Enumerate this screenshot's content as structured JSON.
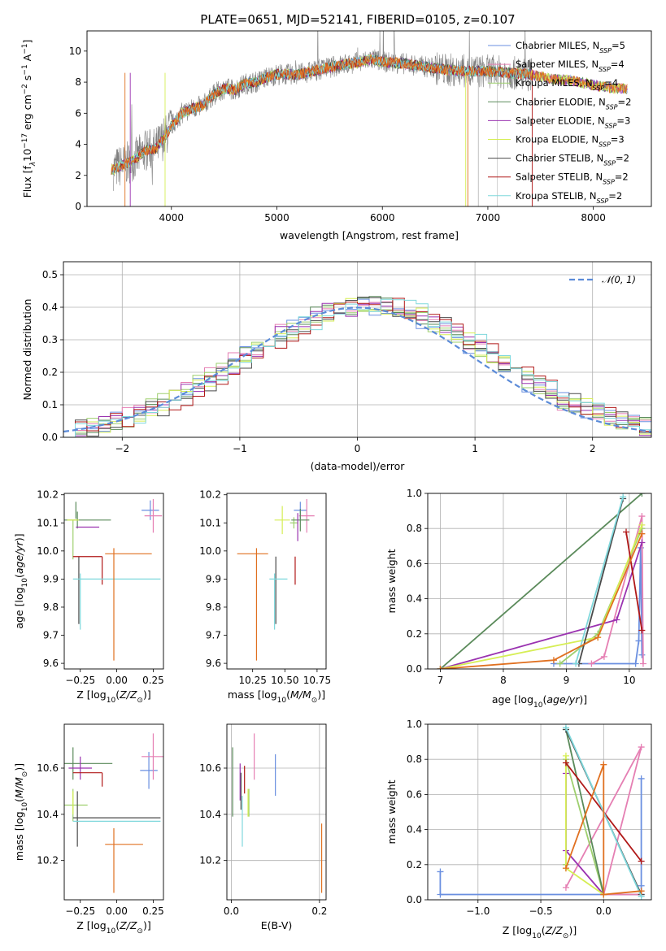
{
  "title": "PLATE=0651, MJD=52141, FIBERID=0105, z=0.107",
  "colors": {
    "Chabrier MILES": "#6a8fe0",
    "Salpeter MILES": "#e57fb3",
    "Kroupa MILES": "#9ecf6e",
    "Chabrier ELODIE": "#5a8a5a",
    "Salpeter ELODIE": "#9a32b0",
    "Kroupa ELODIE": "#d6ee55",
    "Chabrier STELIB": "#4a4a4a",
    "Salpeter STELIB": "#b01818",
    "Kroupa STELIB": "#7fd8dc",
    "data": "#808080",
    "normal": "#5b8bd8",
    "orange": "#e07020"
  },
  "chart_data": [
    {
      "id": "spectrum",
      "type": "line",
      "title": "PLATE=0651, MJD=52141, FIBERID=0105, z=0.107",
      "xlabel": "wavelength [Angstrom, rest frame]",
      "ylabel": "Flux [f$_\\lambda$10$^{-17}$ erg cm$^{-2}$ s$^{-1}$ A$^{-1}$]",
      "ylabel_parts": [
        "Flux [f",
        "λ",
        "10",
        "−17",
        " erg cm",
        "−2",
        " s",
        "−1",
        " A",
        "−1",
        "]"
      ],
      "xlim": [
        3200,
        8550
      ],
      "ylim": [
        0,
        11.3
      ],
      "xticks": [
        4000,
        5000,
        6000,
        7000,
        8000
      ],
      "yticks": [
        0,
        2,
        4,
        6,
        8,
        10
      ],
      "continuum": {
        "x": [
          3450,
          3550,
          3650,
          3750,
          3850,
          3950,
          4000,
          4100,
          4200,
          4300,
          4400,
          4500,
          4600,
          4700,
          4800,
          4900,
          5000,
          5200,
          5400,
          5600,
          5800,
          5900,
          6000,
          6200,
          6400,
          6600,
          6800,
          7000,
          7200,
          7400,
          7600,
          7800,
          8000,
          8200,
          8300
        ],
        "y": [
          2.4,
          2.7,
          3.0,
          3.6,
          3.7,
          4.6,
          5.2,
          6.0,
          6.3,
          6.5,
          7.2,
          7.6,
          7.5,
          7.9,
          8.0,
          8.3,
          8.5,
          8.5,
          8.8,
          9.1,
          9.3,
          9.5,
          9.3,
          9.2,
          9.0,
          8.8,
          8.7,
          8.7,
          8.6,
          8.5,
          8.2,
          8.1,
          7.8,
          7.6,
          7.6
        ]
      },
      "legend": [
        {
          "name": "Chabrier MILES",
          "nssp": "5"
        },
        {
          "name": "Salpeter MILES",
          "nssp": "4"
        },
        {
          "name": "Kroupa MILES",
          "nssp": "4"
        },
        {
          "name": "Chabrier ELODIE",
          "nssp": "2"
        },
        {
          "name": "Salpeter ELODIE",
          "nssp": "3"
        },
        {
          "name": "Kroupa ELODIE",
          "nssp": "3"
        },
        {
          "name": "Chabrier STELIB",
          "nssp": "2"
        },
        {
          "name": "Salpeter STELIB",
          "nssp": "2"
        },
        {
          "name": "Kroupa STELIB",
          "nssp": "2"
        }
      ],
      "legend_placement": "right"
    },
    {
      "id": "residuals",
      "type": "histogram",
      "xlabel": "(data-model)/error",
      "ylabel": "Normed distribution",
      "xlim": [
        -2.5,
        2.5
      ],
      "ylim": [
        0,
        0.54
      ],
      "xticks": [
        -2,
        -1,
        0,
        1,
        2
      ],
      "yticks": [
        0.0,
        0.1,
        0.2,
        0.3,
        0.4,
        0.5
      ],
      "bin_width": 0.1,
      "legend": "$\\mathcal{N}(0,1)$",
      "legend_label": "𝒩(0, 1)",
      "legend_placement": "top-right",
      "grid": true
    },
    {
      "id": "age-vs-Z",
      "type": "errorbar",
      "xlabel": "Z [log$_{10}$($Z/Z_\\odot$)]",
      "ylabel": "age  [log$_{10}$($age/yr$)]",
      "xlim": [
        -0.36,
        0.32
      ],
      "ylim": [
        9.58,
        10.205
      ],
      "xticks": [
        -0.25,
        0.0,
        0.25
      ],
      "xticklabels": [
        "−0.25",
        "0.00",
        "0.25"
      ],
      "yticks": [
        9.6,
        9.7,
        9.8,
        9.9,
        10.0,
        10.1,
        10.2
      ],
      "points": [
        {
          "series": "Chabrier MILES",
          "x": 0.23,
          "xerr": 0.06,
          "y": 10.145,
          "yerr": 0.035
        },
        {
          "series": "Salpeter MILES",
          "x": 0.25,
          "xerr": 0.06,
          "y": 10.125,
          "yerr": 0.06
        },
        {
          "series": "Kroupa MILES",
          "x": -0.3,
          "xerr": 0.0,
          "y": 10.04,
          "yerr": 0.07
        },
        {
          "series": "Chabrier ELODIE",
          "x": -0.28,
          "xerr": 0.0,
          "y": 10.145,
          "yerr": 0.03
        },
        {
          "series": "Chabrier ELODIE",
          "x": -0.27,
          "xerr": 0.23,
          "y": 10.11,
          "yerr": 0.03
        },
        {
          "series": "Salpeter ELODIE",
          "x": -0.2,
          "xerr": 0.08,
          "y": 10.085,
          "yerr": 0.0
        },
        {
          "series": "Kroupa ELODIE",
          "x": -0.3,
          "xerr": 0.04,
          "y": 10.11,
          "yerr": 0.0
        },
        {
          "series": "Chabrier STELIB",
          "x": -0.26,
          "xerr": 0.0,
          "y": 9.86,
          "yerr": 0.12
        },
        {
          "series": "Salpeter STELIB",
          "x": -0.1,
          "xerr": 0.0,
          "y": 9.93,
          "yerr": 0.05
        },
        {
          "series": "Salpeter STELIB",
          "x": -0.2,
          "xerr": 0.1,
          "y": 9.98,
          "yerr": 0.0
        },
        {
          "series": "Kroupa STELIB",
          "x": 0.0,
          "xerr": 0.3,
          "y": 9.9,
          "yerr": 0.0
        },
        {
          "series": "Kroupa STELIB",
          "x": -0.25,
          "xerr": 0.0,
          "y": 9.82,
          "yerr": 0.1
        },
        {
          "series": "orange",
          "x": -0.02,
          "xerr": 0.0,
          "y": 9.81,
          "yerr": 0.2
        },
        {
          "series": "orange",
          "x": 0.08,
          "xerr": 0.16,
          "y": 9.99,
          "yerr": 0.0
        }
      ]
    },
    {
      "id": "age-vs-mass",
      "type": "errorbar",
      "xlabel": "mass [log$_{10}$($M/M_\\odot$)]",
      "xlim": [
        10.05,
        10.82
      ],
      "ylim": [
        9.58,
        10.205
      ],
      "xticks": [
        10.25,
        10.5,
        10.75
      ],
      "xticklabels": [
        "10.25",
        "10.50",
        "10.75"
      ],
      "yticks": [
        9.6,
        9.7,
        9.8,
        9.9,
        10.0,
        10.1,
        10.2
      ],
      "points": [
        {
          "series": "Chabrier MILES",
          "x": 10.62,
          "xerr": 0.05,
          "y": 10.145,
          "yerr": 0.03
        },
        {
          "series": "Salpeter MILES",
          "x": 10.67,
          "xerr": 0.06,
          "y": 10.125,
          "yerr": 0.06
        },
        {
          "series": "Kroupa MILES",
          "x": 10.57,
          "xerr": 0.03,
          "y": 10.1,
          "yerr": 0.02
        },
        {
          "series": "Chabrier ELODIE",
          "x": 10.62,
          "xerr": 0.07,
          "y": 10.11,
          "yerr": 0.04
        },
        {
          "series": "Salpeter ELODIE",
          "x": 10.6,
          "xerr": 0.0,
          "y": 10.085,
          "yerr": 0.05
        },
        {
          "series": "Kroupa ELODIE",
          "x": 10.48,
          "xerr": 0.06,
          "y": 10.11,
          "yerr": 0.05
        },
        {
          "series": "Chabrier STELIB",
          "x": 10.43,
          "xerr": 0.0,
          "y": 9.86,
          "yerr": 0.12
        },
        {
          "series": "Salpeter STELIB",
          "x": 10.58,
          "xerr": 0.0,
          "y": 9.93,
          "yerr": 0.05
        },
        {
          "series": "Kroupa STELIB",
          "x": 10.45,
          "xerr": 0.07,
          "y": 9.9,
          "yerr": 0.0
        },
        {
          "series": "Kroupa STELIB",
          "x": 10.42,
          "xerr": 0.0,
          "y": 9.82,
          "yerr": 0.1
        },
        {
          "series": "orange",
          "x": 10.28,
          "xerr": 0.0,
          "y": 9.81,
          "yerr": 0.2
        },
        {
          "series": "orange",
          "x": 10.25,
          "xerr": 0.12,
          "y": 9.99,
          "yerr": 0.0
        }
      ]
    },
    {
      "id": "weight-vs-age",
      "type": "line",
      "xlabel": "age  [log$_{10}$($age/yr$)]",
      "ylabel": "mass weight",
      "xlim": [
        6.8,
        10.35
      ],
      "ylim": [
        0,
        1
      ],
      "xticks": [
        7,
        8,
        9,
        10
      ],
      "yticks": [
        0.0,
        0.2,
        0.4,
        0.6,
        0.8,
        1.0
      ],
      "grid": true,
      "series": [
        {
          "name": "Chabrier MILES",
          "x": [
            8.8,
            10.1,
            10.15,
            10.18,
            10.2
          ],
          "y": [
            0.03,
            0.03,
            0.16,
            0.69,
            0.08
          ]
        },
        {
          "name": "Salpeter MILES",
          "x": [
            9.4,
            9.6,
            10.2,
            10.22
          ],
          "y": [
            0.03,
            0.07,
            0.87,
            0.03
          ]
        },
        {
          "name": "Kroupa MILES",
          "x": [
            8.9,
            9.5,
            10.2
          ],
          "y": [
            0.03,
            0.2,
            0.8
          ]
        },
        {
          "name": "Chabrier ELODIE",
          "x": [
            7.0,
            10.2
          ],
          "y": [
            0.0,
            1.0
          ]
        },
        {
          "name": "Salpeter ELODIE",
          "x": [
            7.0,
            9.8,
            10.2
          ],
          "y": [
            0.0,
            0.28,
            0.72
          ]
        },
        {
          "name": "Kroupa ELODIE",
          "x": [
            7.0,
            9.5,
            10.2
          ],
          "y": [
            0.0,
            0.18,
            0.82
          ]
        },
        {
          "name": "Chabrier STELIB",
          "x": [
            9.2,
            9.9
          ],
          "y": [
            0.03,
            0.97
          ]
        },
        {
          "name": "Salpeter STELIB",
          "x": [
            9.95,
            10.2
          ],
          "y": [
            0.78,
            0.22
          ]
        },
        {
          "name": "Kroupa STELIB",
          "x": [
            9.15,
            9.9
          ],
          "y": [
            0.03,
            0.98
          ]
        },
        {
          "name": "orange",
          "x": [
            7.0,
            8.8,
            9.5,
            10.2
          ],
          "y": [
            0.0,
            0.05,
            0.18,
            0.77
          ]
        }
      ]
    },
    {
      "id": "mass-vs-Z",
      "type": "errorbar",
      "xlabel": "Z [log$_{10}$($Z/Z_\\odot$)]",
      "ylabel": "mass [log$_{10}$($M/M_\\odot$)]",
      "xlim": [
        -0.36,
        0.32
      ],
      "ylim": [
        10.03,
        10.79
      ],
      "xticks": [
        -0.25,
        0.0,
        0.25
      ],
      "xticklabels": [
        "−0.25",
        "0.00",
        "0.25"
      ],
      "yticks": [
        10.2,
        10.4,
        10.6
      ],
      "points": [
        {
          "series": "Chabrier MILES",
          "x": 0.22,
          "xerr": 0.06,
          "y": 10.59,
          "yerr": 0.08
        },
        {
          "series": "Salpeter MILES",
          "x": 0.25,
          "xerr": 0.08,
          "y": 10.65,
          "yerr": 0.1
        },
        {
          "series": "Kroupa MILES",
          "x": -0.3,
          "xerr": 0.1,
          "y": 10.44,
          "yerr": 0.07
        },
        {
          "series": "Chabrier ELODIE",
          "x": -0.3,
          "xerr": 0.27,
          "y": 10.62,
          "yerr": 0.07
        },
        {
          "series": "Salpeter ELODIE",
          "x": -0.25,
          "xerr": 0.08,
          "y": 10.6,
          "yerr": 0.05
        },
        {
          "series": "Kroupa ELODIE",
          "x": -0.3,
          "xerr": 0.0,
          "y": 10.45,
          "yerr": 0.05
        },
        {
          "series": "Chabrier STELIB",
          "x": -0.27,
          "xerr": 0.0,
          "y": 10.38,
          "yerr": 0.12
        },
        {
          "series": "Salpeter STELIB",
          "x": -0.1,
          "xerr": 0.0,
          "y": 10.55,
          "yerr": 0.03
        },
        {
          "series": "Salpeter STELIB",
          "x": -0.2,
          "xerr": 0.1,
          "y": 10.58,
          "yerr": 0.0
        },
        {
          "series": "Kroupa STELIB",
          "x": 0.0,
          "xerr": 0.3,
          "y": 10.37,
          "yerr": 0.0
        },
        {
          "series": "Chabrier STELIB",
          "x": 0.0,
          "xerr": 0.3,
          "y": 10.385,
          "yerr": 0.0
        },
        {
          "series": "orange",
          "x": -0.02,
          "xerr": 0.0,
          "y": 10.2,
          "yerr": 0.14
        },
        {
          "series": "orange",
          "x": 0.05,
          "xerr": 0.13,
          "y": 10.27,
          "yerr": 0.0
        }
      ]
    },
    {
      "id": "mass-vs-EBV",
      "type": "errorbar",
      "xlabel": "E(B-V)",
      "xlim": [
        -0.01,
        0.215
      ],
      "ylim": [
        10.03,
        10.79
      ],
      "xticks": [
        0.0,
        0.2
      ],
      "xticklabels": [
        "0.0",
        "0.2"
      ],
      "yticks": [
        10.2,
        10.4,
        10.6
      ],
      "grid": true,
      "points": [
        {
          "series": "Chabrier MILES",
          "x": 0.1,
          "xerr": 0.0,
          "y": 10.57,
          "yerr": 0.09
        },
        {
          "series": "Salpeter MILES",
          "x": 0.052,
          "xerr": 0.0,
          "y": 10.65,
          "yerr": 0.1
        },
        {
          "series": "Kroupa MILES",
          "x": 0.04,
          "xerr": 0.0,
          "y": 10.45,
          "yerr": 0.06
        },
        {
          "series": "Chabrier ELODIE",
          "x": 0.003,
          "xerr": 0.0,
          "y": 10.54,
          "yerr": 0.15
        },
        {
          "series": "Salpeter ELODIE",
          "x": 0.02,
          "xerr": 0.0,
          "y": 10.54,
          "yerr": 0.08
        },
        {
          "series": "Kroupa ELODIE",
          "x": 0.038,
          "xerr": 0.0,
          "y": 10.45,
          "yerr": 0.06
        },
        {
          "series": "Chabrier STELIB",
          "x": 0.022,
          "xerr": 0.0,
          "y": 10.5,
          "yerr": 0.08
        },
        {
          "series": "Salpeter STELIB",
          "x": 0.03,
          "xerr": 0.0,
          "y": 10.55,
          "yerr": 0.06
        },
        {
          "series": "Kroupa STELIB",
          "x": 0.025,
          "xerr": 0.0,
          "y": 10.37,
          "yerr": 0.11
        },
        {
          "series": "orange",
          "x": 0.205,
          "xerr": 0.0,
          "y": 10.21,
          "yerr": 0.15
        }
      ]
    },
    {
      "id": "weight-vs-Z",
      "type": "line",
      "xlabel": "Z [log$_{10}$($Z/Z_\\odot$)]",
      "ylabel": "mass weight",
      "xlim": [
        -1.4,
        0.38
      ],
      "ylim": [
        0,
        1
      ],
      "xticks": [
        -1.0,
        -0.5,
        0.0
      ],
      "xticklabels": [
        "−1.0",
        "−0.5",
        "0.0"
      ],
      "yticks": [
        0.0,
        0.2,
        0.4,
        0.6,
        0.8,
        1.0
      ],
      "grid": true,
      "series": [
        {
          "name": "Chabrier MILES",
          "x": [
            -1.3,
            -1.3,
            0.3,
            0.3,
            0.3
          ],
          "y": [
            0.16,
            0.03,
            0.03,
            0.69,
            0.08
          ]
        },
        {
          "name": "Salpeter MILES",
          "x": [
            -0.3,
            0.3,
            0.0,
            0.3
          ],
          "y": [
            0.07,
            0.87,
            0.03,
            0.03
          ]
        },
        {
          "name": "Kroupa MILES",
          "x": [
            -0.3,
            -0.3,
            0.0
          ],
          "y": [
            0.2,
            0.8,
            0.03
          ]
        },
        {
          "name": "Chabrier ELODIE",
          "x": [
            -0.3,
            0.0
          ],
          "y": [
            0.97,
            0.03
          ]
        },
        {
          "name": "Salpeter ELODIE",
          "x": [
            -0.3,
            -0.3,
            0.0
          ],
          "y": [
            0.72,
            0.28,
            0.03
          ]
        },
        {
          "name": "Kroupa ELODIE",
          "x": [
            -0.3,
            -0.3,
            0.0
          ],
          "y": [
            0.82,
            0.18,
            0.03
          ]
        },
        {
          "name": "Chabrier STELIB",
          "x": [
            -0.3,
            0.3
          ],
          "y": [
            0.97,
            0.03
          ]
        },
        {
          "name": "Salpeter STELIB",
          "x": [
            -0.3,
            0.3
          ],
          "y": [
            0.78,
            0.22
          ]
        },
        {
          "name": "Kroupa STELIB",
          "x": [
            -0.3,
            0.3
          ],
          "y": [
            0.98,
            0.02
          ]
        },
        {
          "name": "orange",
          "x": [
            -0.3,
            0.0,
            0.0,
            0.3
          ],
          "y": [
            0.18,
            0.77,
            0.03,
            0.05
          ]
        }
      ]
    }
  ]
}
